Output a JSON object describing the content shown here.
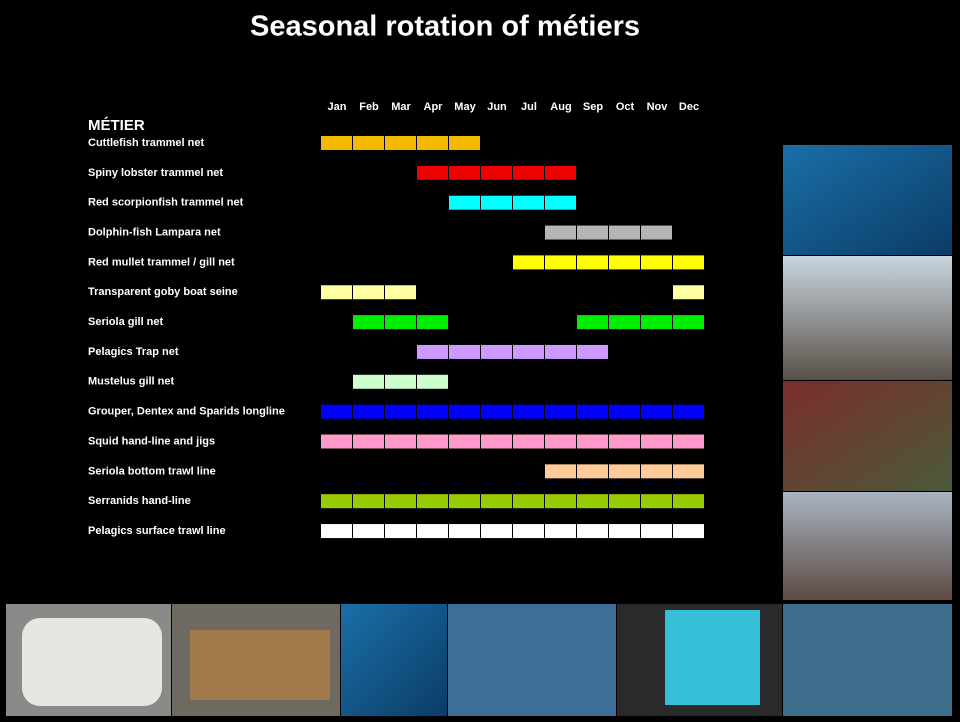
{
  "chart_data": {
    "type": "gantt",
    "title": "Seasonal rotation of métiers",
    "row_header": "MÉTIER",
    "categories": [
      "Jan",
      "Feb",
      "Mar",
      "Apr",
      "May",
      "Jun",
      "Jul",
      "Aug",
      "Sep",
      "Oct",
      "Nov",
      "Dec"
    ],
    "series": [
      {
        "name": "Cuttlefish trammel net",
        "color": "#f5b800",
        "values": [
          1,
          1,
          1,
          1,
          1,
          null,
          null,
          null,
          null,
          null,
          null,
          null
        ]
      },
      {
        "name": "Spiny lobster trammel net",
        "color": "#ee0000",
        "values": [
          null,
          null,
          null,
          1,
          1,
          1,
          1,
          1,
          null,
          null,
          null,
          null
        ]
      },
      {
        "name": "Red scorpionfish trammel net",
        "color": "#00ffff",
        "values": [
          null,
          null,
          null,
          null,
          1,
          1,
          1,
          1,
          null,
          null,
          null,
          null
        ]
      },
      {
        "name": "Dolphin-fish Lampara net",
        "color": "#b4b4b4",
        "values": [
          null,
          null,
          null,
          null,
          null,
          null,
          null,
          1,
          1,
          1,
          1,
          null
        ]
      },
      {
        "name": "Red mullet trammel / gill net",
        "color": "#ffff00",
        "values": [
          null,
          null,
          null,
          null,
          null,
          null,
          1,
          1,
          1,
          1,
          1,
          1
        ]
      },
      {
        "name": "Transparent goby boat seine",
        "color": "#ffffa0",
        "values": [
          1,
          1,
          1,
          null,
          null,
          null,
          null,
          null,
          null,
          null,
          null,
          1
        ]
      },
      {
        "name": "Seriola gill net",
        "color": "#00ee00",
        "values": [
          null,
          1,
          1,
          1,
          null,
          null,
          null,
          null,
          1,
          1,
          1,
          1
        ]
      },
      {
        "name": "Pelagics Trap net",
        "color": "#cc99ff",
        "values": [
          null,
          null,
          null,
          1,
          1,
          1,
          1,
          1,
          1,
          null,
          null,
          null
        ]
      },
      {
        "name": "Mustelus gill net",
        "color": "#ccffcc",
        "values": [
          null,
          1,
          1,
          1,
          null,
          null,
          null,
          null,
          null,
          null,
          null,
          null
        ]
      },
      {
        "name": "Grouper, Dentex and Sparids longline",
        "color": "#0000ff",
        "values": [
          1,
          1,
          1,
          1,
          1,
          1,
          1,
          1,
          1,
          1,
          1,
          1
        ]
      },
      {
        "name": "Squid hand-line and jigs",
        "color": "#ff99cc",
        "values": [
          1,
          1,
          1,
          1,
          1,
          1,
          1,
          1,
          1,
          1,
          1,
          1
        ]
      },
      {
        "name": "Seriola bottom trawl line",
        "color": "#ffcc99",
        "values": [
          null,
          null,
          null,
          null,
          null,
          null,
          null,
          1,
          1,
          1,
          1,
          1
        ]
      },
      {
        "name": "Serranids hand-line",
        "color": "#99cc00",
        "values": [
          1,
          1,
          1,
          1,
          1,
          1,
          1,
          1,
          1,
          1,
          1,
          1
        ]
      },
      {
        "name": "Pelagics surface trawl line",
        "color": "#ffffff",
        "values": [
          1,
          1,
          1,
          1,
          1,
          1,
          1,
          1,
          1,
          1,
          1,
          1
        ]
      }
    ]
  }
}
